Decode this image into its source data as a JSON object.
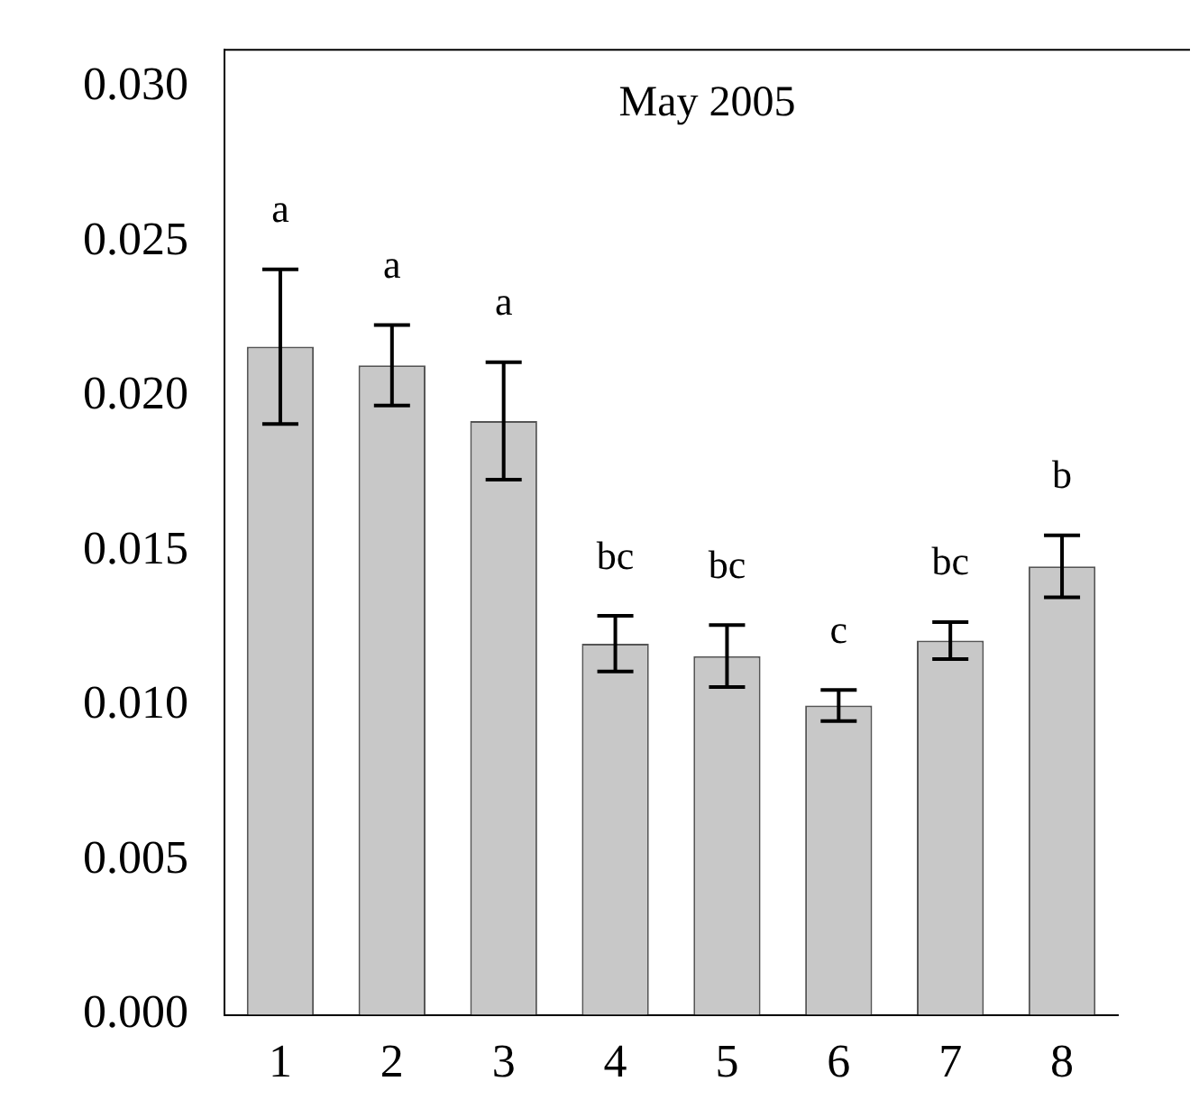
{
  "chart_data": {
    "type": "bar",
    "title": "May 2005",
    "categories": [
      "1",
      "2",
      "3",
      "4",
      "5",
      "6",
      "7",
      "8"
    ],
    "values": [
      0.0216,
      0.021,
      0.0192,
      0.012,
      0.0116,
      0.01,
      0.0121,
      0.0145
    ],
    "errors": [
      0.0025,
      0.0013,
      0.0019,
      0.0009,
      0.001,
      0.0005,
      0.0006,
      0.001
    ],
    "color": "#c8c8c8",
    "ylim": [
      0,
      0.0312
    ],
    "yticks": [
      {
        "value": 0,
        "label": "0.000"
      },
      {
        "value": 0.005,
        "label": "0.005"
      },
      {
        "value": 0.01,
        "label": "0.010"
      },
      {
        "value": 0.015,
        "label": "0.015"
      },
      {
        "value": 0.02,
        "label": "0.020"
      },
      {
        "value": 0.025,
        "label": "0.025"
      },
      {
        "value": 0.03,
        "label": "0.030"
      }
    ],
    "grid": false,
    "legend": false,
    "annotations": [
      "a",
      "a",
      "a",
      "bc",
      "bc",
      "c",
      "bc",
      "b"
    ]
  }
}
